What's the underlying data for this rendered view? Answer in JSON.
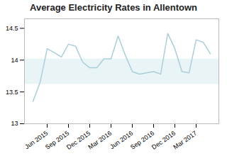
{
  "chart_data": {
    "type": "line",
    "title": "Average Electricity Rates in Allentown",
    "categories": [
      null,
      null,
      "Jun 2015",
      null,
      null,
      "Sep 2015",
      null,
      null,
      "Dec 2015",
      null,
      null,
      "Mar 2016",
      null,
      null,
      "Jun 2016",
      null,
      null,
      "Sep 2016",
      null,
      null,
      "Dec 2016",
      null,
      null,
      "Mar 2017",
      null,
      null
    ],
    "values": [
      13.35,
      13.65,
      14.18,
      14.12,
      14.05,
      14.25,
      14.22,
      13.97,
      13.88,
      13.88,
      14.02,
      14.02,
      14.38,
      14.08,
      13.82,
      13.78,
      13.8,
      13.82,
      13.78,
      14.42,
      14.18,
      13.82,
      13.8,
      14.32,
      14.28,
      14.1
    ],
    "color": "#aacfd9",
    "band": {
      "y": [
        13.62,
        14.02
      ],
      "color": "#e9f4f7"
    },
    "ylim": [
      13.0,
      14.65
    ],
    "yticks": [
      13,
      13.5,
      14,
      14.5
    ],
    "grid": false
  }
}
